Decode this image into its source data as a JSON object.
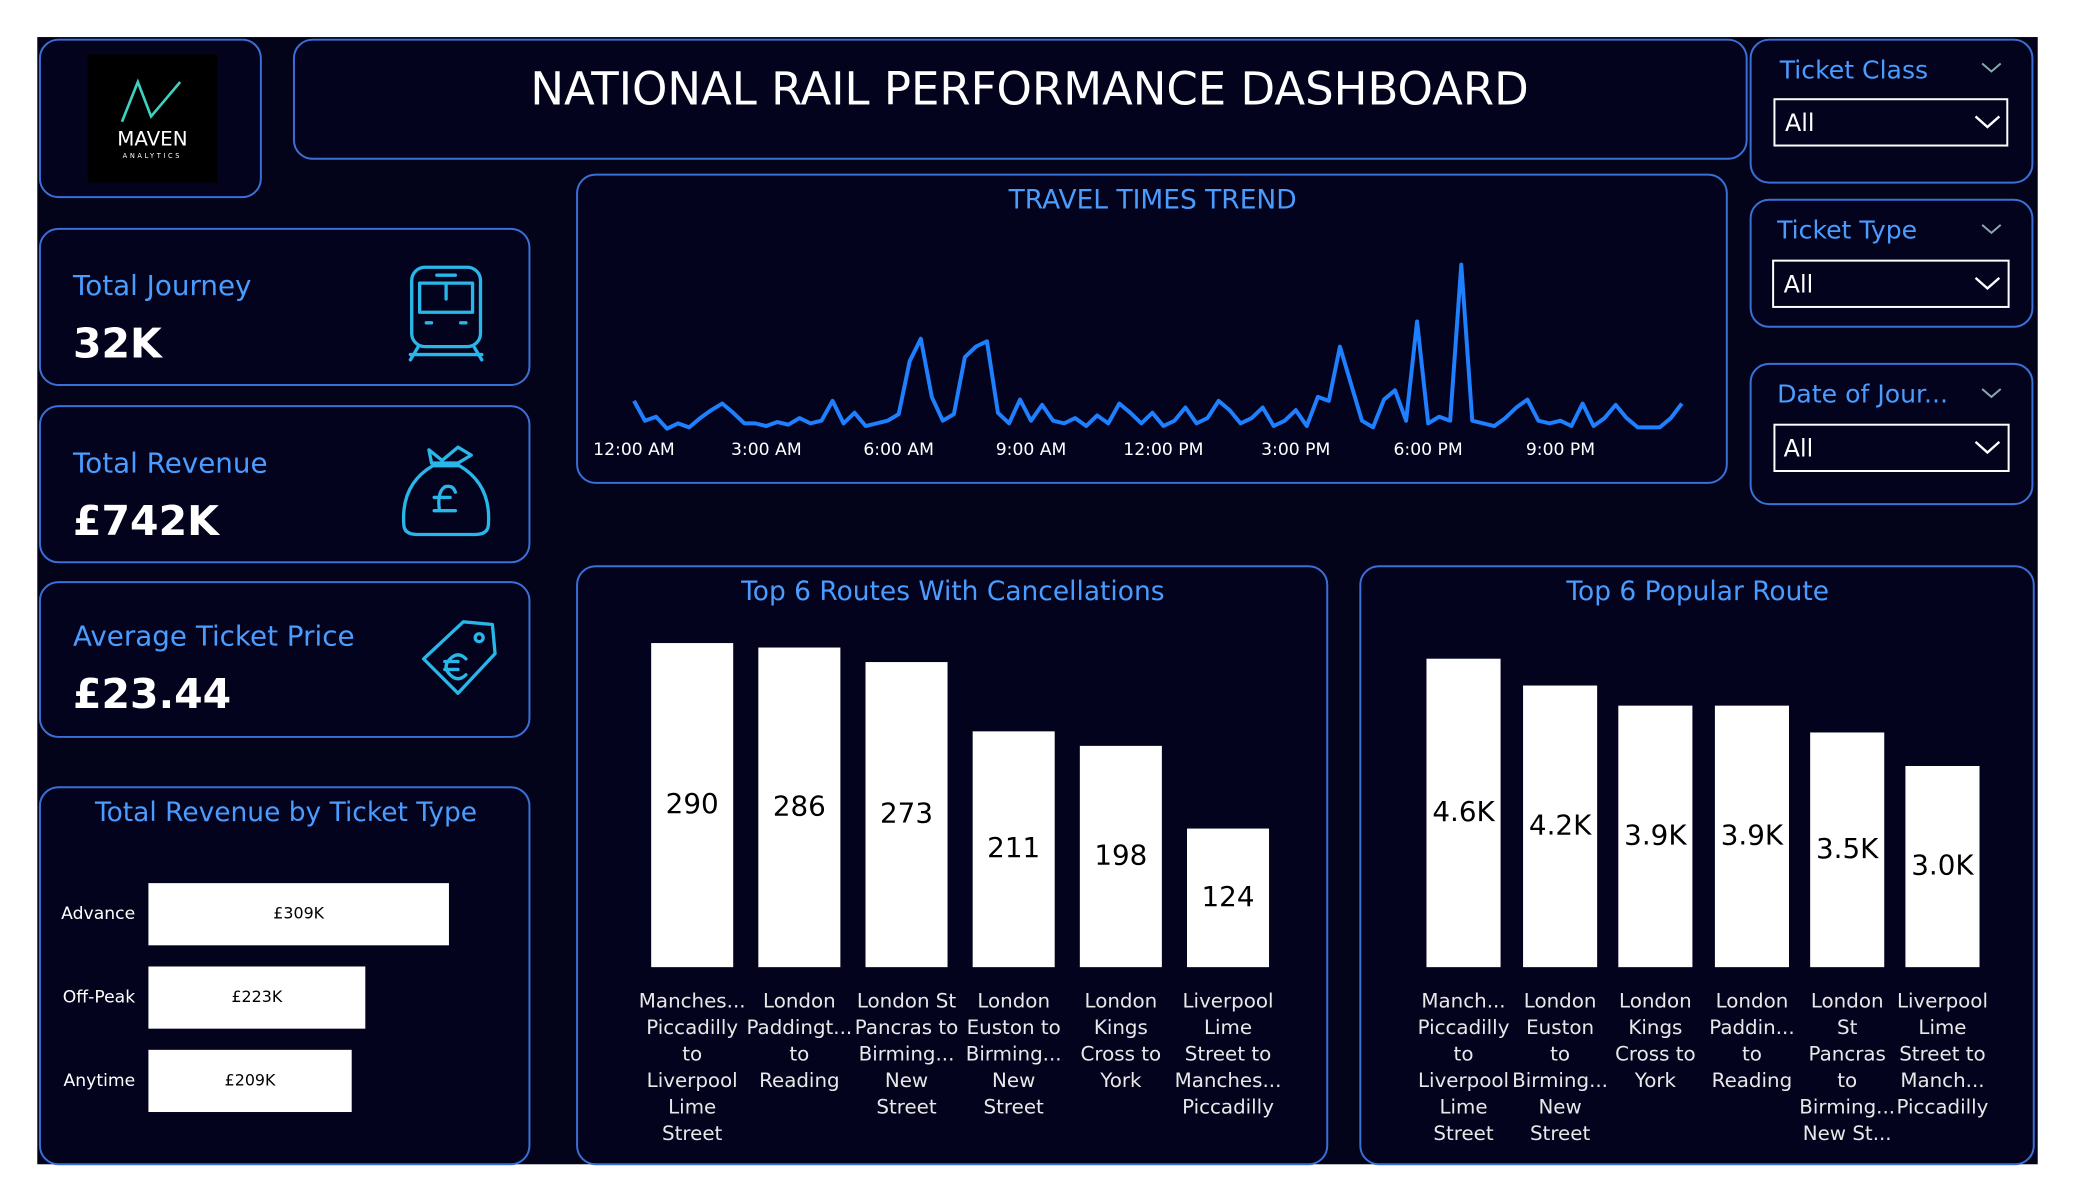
{
  "header": {
    "title": "NATIONAL RAIL PERFORMANCE DASHBOARD"
  },
  "logo": {
    "name": "MAVEN",
    "tagline": "ANALYTICS"
  },
  "kpis": [
    {
      "label": "Total Journey",
      "value": "32K"
    },
    {
      "label": "Total Revenue",
      "value": "£742K"
    },
    {
      "label": "Average Ticket Price",
      "value": "£23.44"
    }
  ],
  "filters": [
    {
      "label": "Ticket Class",
      "value": "All"
    },
    {
      "label": "Ticket Type",
      "value": "All"
    },
    {
      "label": "Date of Jour...",
      "value": "All"
    }
  ],
  "chart_data": [
    {
      "type": "line",
      "title": "TRAVEL TIMES TREND",
      "color": "#1e7fff",
      "x": [
        0,
        0.25,
        0.5,
        0.75,
        1,
        1.25,
        1.5,
        1.75,
        2,
        2.25,
        2.5,
        2.75,
        3,
        3.25,
        3.5,
        3.75,
        4,
        4.25,
        4.5,
        4.75,
        5,
        5.25,
        5.5,
        5.75,
        6,
        6.25,
        6.5,
        6.75,
        7,
        7.25,
        7.5,
        7.75,
        8,
        8.25,
        8.5,
        8.75,
        9,
        9.25,
        9.5,
        9.75,
        10,
        10.25,
        10.5,
        10.75,
        11,
        11.25,
        11.5,
        11.75,
        12,
        12.25,
        12.5,
        12.75,
        13,
        13.25,
        13.5,
        13.75,
        14,
        14.25,
        14.5,
        14.75,
        15,
        15.25,
        15.5,
        15.75,
        16,
        16.25,
        16.5,
        16.75,
        17,
        17.25,
        17.5,
        17.75,
        18,
        18.25,
        18.5,
        18.75,
        19,
        19.25,
        19.5,
        19.75,
        20,
        20.25,
        20.5,
        20.75,
        21,
        21.25,
        21.5,
        21.75,
        22,
        22.25,
        22.5,
        22.75,
        23,
        23.25,
        23.5,
        23.75
      ],
      "values": [
        27,
        12,
        15,
        6,
        10,
        7,
        14,
        20,
        25,
        18,
        10,
        10,
        8,
        11,
        9,
        14,
        10,
        12,
        27,
        10,
        18,
        8,
        10,
        12,
        17,
        57,
        74,
        30,
        12,
        17,
        60,
        68,
        72,
        18,
        10,
        28,
        12,
        24,
        12,
        10,
        14,
        8,
        16,
        10,
        25,
        18,
        10,
        18,
        8,
        12,
        22,
        10,
        14,
        27,
        20,
        10,
        14,
        22,
        8,
        12,
        20,
        8,
        30,
        27,
        68,
        40,
        12,
        7,
        28,
        35,
        12,
        87,
        10,
        15,
        12,
        130,
        12,
        10,
        8,
        14,
        22,
        28,
        12,
        10,
        12,
        8,
        25,
        8,
        14,
        24,
        14,
        7,
        7,
        7,
        14,
        25
      ],
      "xlim": [
        0,
        23.75
      ],
      "ylim": [
        0,
        140
      ],
      "xticks": [
        {
          "value": 0,
          "label": "12:00 AM"
        },
        {
          "value": 3,
          "label": "3:00 AM"
        },
        {
          "value": 6,
          "label": "6:00 AM"
        },
        {
          "value": 9,
          "label": "9:00 AM"
        },
        {
          "value": 12,
          "label": "12:00 PM"
        },
        {
          "value": 15,
          "label": "3:00 PM"
        },
        {
          "value": 18,
          "label": "6:00 PM"
        },
        {
          "value": 21,
          "label": "9:00 PM"
        }
      ]
    },
    {
      "type": "bar",
      "title": "Top 6 Routes With Cancellations",
      "color": "#ffffff",
      "categories": [
        "Manches...\nPiccadilly\nto\nLiverpool\nLime\nStreet",
        "London\nPaddingt...\nto\nReading",
        "London St\nPancras to\nBirming...\nNew\nStreet",
        "London\nEuston to\nBirming...\nNew\nStreet",
        "London\nKings\nCross to\nYork",
        "Liverpool\nLime\nStreet to\nManches...\nPiccadilly"
      ],
      "values": [
        290,
        286,
        273,
        211,
        198,
        124
      ],
      "ylim": [
        0,
        300
      ]
    },
    {
      "type": "bar",
      "title": "Top 6 Popular Route",
      "color": "#ffffff",
      "categories": [
        "Manch...\nPiccadilly\nto\nLiverpool\nLime\nStreet",
        "London\nEuston\nto\nBirming...\nNew\nStreet",
        "London\nKings\nCross to\nYork",
        "London\nPaddin...\nto\nReading",
        "London\nSt\nPancras\nto\nBirming...\nNew St...",
        "Liverpool\nLime\nStreet to\nManch...\nPiccadilly"
      ],
      "values": [
        4600,
        4200,
        3900,
        3900,
        3500,
        3000
      ],
      "value_labels": [
        "4.6K",
        "4.2K",
        "3.9K",
        "3.9K",
        "3.5K",
        "3.0K"
      ],
      "ylim": [
        0,
        5000
      ]
    },
    {
      "type": "barh",
      "title": "Total Revenue by Ticket Type",
      "color": "#ffffff",
      "categories": [
        "Advance",
        "Off-Peak",
        "Anytime"
      ],
      "values": [
        309000,
        223000,
        209000
      ],
      "value_labels": [
        "£309K",
        "£223K",
        "£209K"
      ],
      "xlim": [
        0,
        370000
      ]
    }
  ]
}
